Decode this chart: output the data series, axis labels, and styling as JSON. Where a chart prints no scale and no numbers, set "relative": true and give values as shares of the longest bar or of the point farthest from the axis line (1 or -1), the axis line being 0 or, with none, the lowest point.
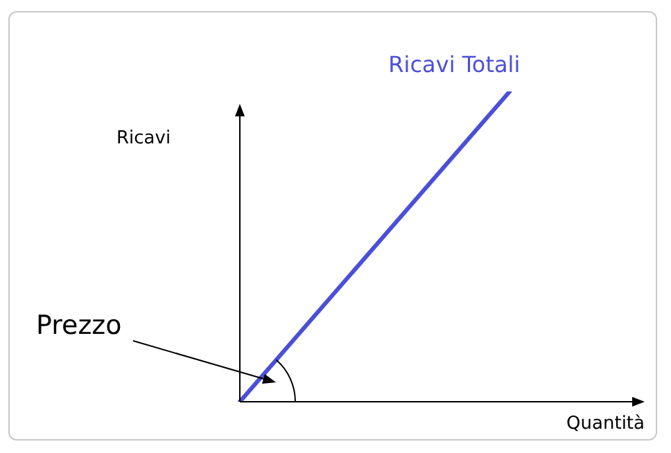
{
  "chart_data": {
    "type": "line",
    "relative": true,
    "ylabel": "Ricavi",
    "xlabel": "Quantità",
    "annotations": [
      "Prezzo"
    ],
    "categories": [
      null,
      null,
      null,
      null
    ],
    "series": [
      {
        "name": "Ricavi Totali",
        "color": "#4b4fd8",
        "values": [
          0,
          0.5,
          1,
          null
        ]
      }
    ],
    "legend": false,
    "marker": "none",
    "line_style": "solid"
  }
}
